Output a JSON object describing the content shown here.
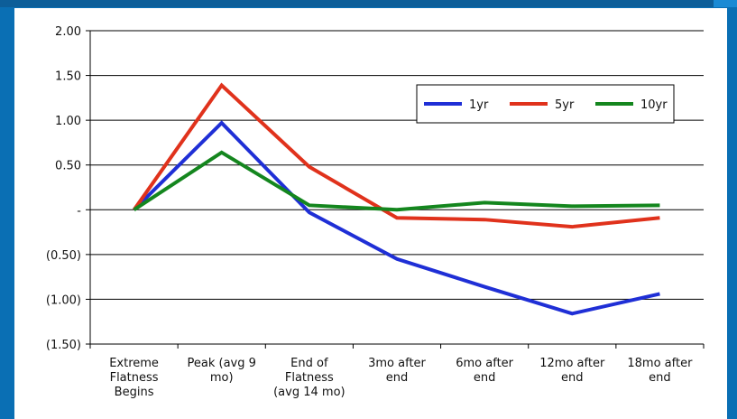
{
  "chart_data": {
    "type": "line",
    "categories": [
      [
        "Extreme",
        "Flatness",
        "Begins"
      ],
      [
        "Peak (avg 9",
        "mo)"
      ],
      [
        "End of",
        "Flatness",
        "(avg 14 mo)"
      ],
      [
        "3mo after",
        "end"
      ],
      [
        "6mo after",
        "end"
      ],
      [
        "12mo after",
        "end"
      ],
      [
        "18mo after",
        "end"
      ]
    ],
    "ylim": [
      -1.5,
      2.0
    ],
    "yticks": [
      {
        "value": 2.0,
        "label": "2.00"
      },
      {
        "value": 1.5,
        "label": "1.50"
      },
      {
        "value": 1.0,
        "label": "1.00"
      },
      {
        "value": 0.5,
        "label": "0.50"
      },
      {
        "value": 0.0,
        "label": "-"
      },
      {
        "value": -0.5,
        "label": "(0.50)"
      },
      {
        "value": -1.0,
        "label": "(1.00)"
      },
      {
        "value": -1.5,
        "label": "(1.50)"
      }
    ],
    "grid": true,
    "legend_position": "top-right",
    "series": [
      {
        "name": "1yr",
        "color": "#1f2fd6",
        "values": [
          0.0,
          0.97,
          -0.03,
          -0.55,
          -0.86,
          -1.16,
          -0.94
        ]
      },
      {
        "name": "5yr",
        "color": "#e0321c",
        "values": [
          0.0,
          1.39,
          0.48,
          -0.09,
          -0.11,
          -0.19,
          -0.09
        ]
      },
      {
        "name": "10yr",
        "color": "#14861e",
        "values": [
          0.0,
          0.64,
          0.05,
          0.0,
          0.08,
          0.04,
          0.05
        ]
      }
    ]
  }
}
